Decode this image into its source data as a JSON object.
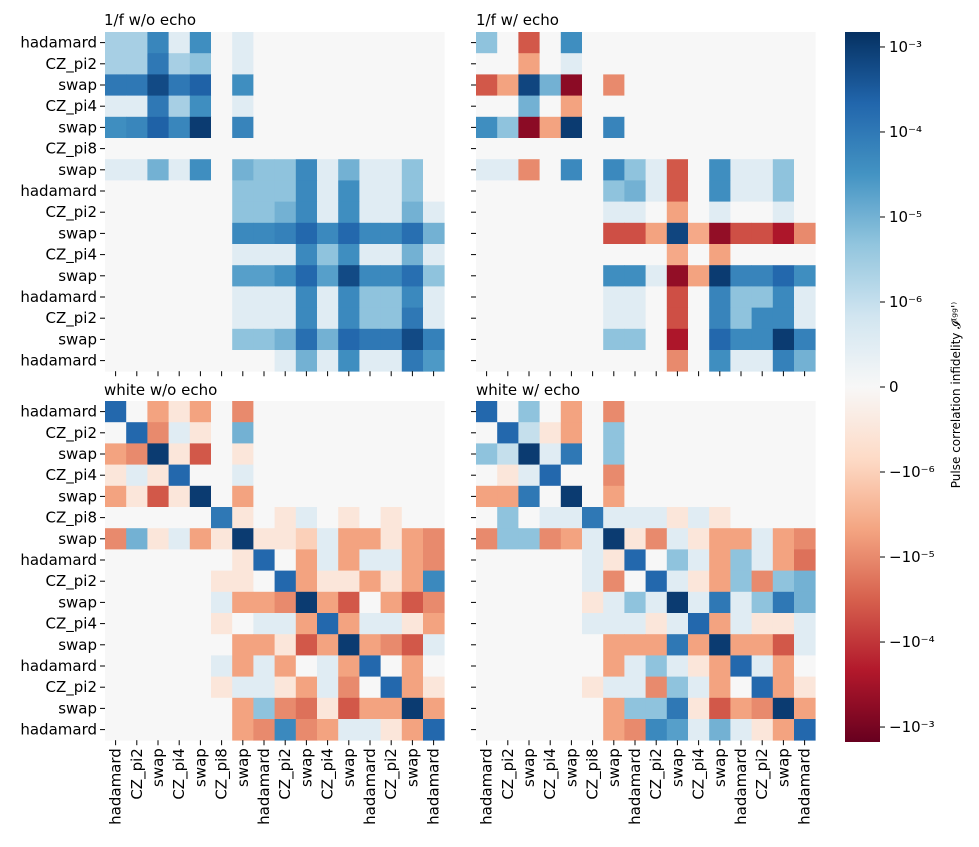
{
  "labels": [
    "hadamard",
    "CZ_pi2",
    "swap",
    "CZ_pi4",
    "swap",
    "CZ_pi8",
    "swap",
    "hadamard",
    "CZ_pi2",
    "swap",
    "CZ_pi4",
    "swap",
    "hadamard",
    "CZ_pi2",
    "swap",
    "hadamard"
  ],
  "colorbar": {
    "label": "Pulse correlation infidelity 𝓘⁽ᵍᵍ'⁾",
    "ticks": [
      {
        "value": 0.001,
        "label": "10⁻³"
      },
      {
        "value": 0.0001,
        "label": "10⁻⁴"
      },
      {
        "value": 1e-05,
        "label": "10⁻⁵"
      },
      {
        "value": 1e-06,
        "label": "10⁻⁶"
      },
      {
        "value": 0,
        "label": "0"
      },
      {
        "value": -1e-06,
        "label": "−10⁻⁶"
      },
      {
        "value": -1e-05,
        "label": "−10⁻⁵"
      },
      {
        "value": -0.0001,
        "label": "−10⁻⁴"
      },
      {
        "value": -0.001,
        "label": "−10⁻³"
      }
    ],
    "vmax": 0.0015,
    "linthresh": 1e-06,
    "colormap": "RdBu_r",
    "colors": {
      "pos_max": "#08306b",
      "mid": "#f7f7f7",
      "neg_max": "#67001f"
    }
  },
  "chart_data": [
    {
      "type": "heatmap",
      "title": "1/f w/o echo",
      "xlabels_shown": false,
      "ylabels_shown": true,
      "values": [
        [
          2.5e-06,
          2.5e-06,
          5.6e-05,
          5e-07,
          4e-05,
          0,
          5e-07,
          0,
          0,
          0,
          0,
          0,
          0,
          0,
          0,
          0
        ],
        [
          2.5e-06,
          2.5e-06,
          0.0001,
          2.5e-06,
          5e-06,
          0,
          5e-07,
          0,
          0,
          0,
          0,
          0,
          0,
          0,
          0,
          0
        ],
        [
          0.0001,
          0.0001,
          0.0006,
          0.0001,
          0.00025,
          0,
          4e-05,
          0,
          0,
          0,
          0,
          0,
          0,
          0,
          0,
          0
        ],
        [
          5e-07,
          5e-07,
          0.0001,
          2.5e-06,
          4e-05,
          0,
          5e-07,
          0,
          0,
          0,
          0,
          0,
          0,
          0,
          0,
          0
        ],
        [
          4e-05,
          5.6e-05,
          0.00025,
          5.6e-05,
          0.001,
          0,
          6e-05,
          0,
          0,
          0,
          0,
          0,
          0,
          0,
          0,
          0
        ],
        [
          0,
          0,
          0,
          0,
          0,
          0,
          0,
          0,
          0,
          0,
          0,
          0,
          0,
          0,
          0,
          0
        ],
        [
          5e-07,
          5e-07,
          1e-05,
          5e-07,
          4e-05,
          0,
          1e-05,
          5e-06,
          5e-06,
          5e-05,
          5e-07,
          1e-05,
          5e-07,
          5e-07,
          5e-06,
          0
        ],
        [
          0,
          0,
          0,
          0,
          0,
          0,
          5e-06,
          5e-06,
          5e-06,
          5e-05,
          5e-07,
          4e-05,
          5e-07,
          5e-07,
          5e-06,
          0
        ],
        [
          0,
          0,
          0,
          0,
          0,
          0,
          5e-06,
          5e-06,
          1e-05,
          5e-05,
          5e-07,
          4e-05,
          5e-07,
          5e-07,
          1e-05,
          5e-07
        ],
        [
          0,
          0,
          0,
          0,
          0,
          0,
          5e-05,
          5e-05,
          7e-05,
          0.0002,
          5e-05,
          0.0002,
          5e-05,
          5e-05,
          0.00015,
          1e-05
        ],
        [
          0,
          0,
          0,
          0,
          0,
          0,
          5e-07,
          5e-07,
          5e-07,
          5e-05,
          5e-06,
          4e-05,
          5e-07,
          5e-07,
          1e-05,
          5e-07
        ],
        [
          0,
          0,
          0,
          0,
          0,
          0,
          2e-05,
          2e-05,
          4e-05,
          0.0002,
          2e-05,
          0.0006,
          5e-05,
          5e-05,
          0.00015,
          5e-06
        ],
        [
          0,
          0,
          0,
          0,
          0,
          0,
          5e-07,
          5e-07,
          5e-07,
          5e-05,
          5e-07,
          5e-05,
          5e-06,
          5e-06,
          5e-05,
          5e-07
        ],
        [
          0,
          0,
          0,
          0,
          0,
          0,
          5e-07,
          5e-07,
          5e-07,
          5e-05,
          5e-07,
          5e-05,
          5e-06,
          5e-06,
          0.0001,
          5e-07
        ],
        [
          0,
          0,
          0,
          0,
          0,
          0,
          5e-06,
          5e-06,
          1e-05,
          0.00015,
          1e-05,
          0.0002,
          0.0001,
          0.0001,
          0.0006,
          7e-05
        ],
        [
          0,
          0,
          0,
          0,
          0,
          0,
          0,
          0,
          5e-07,
          1e-05,
          5e-07,
          4e-05,
          5e-07,
          5e-07,
          0.0001,
          2.5e-05
        ]
      ]
    },
    {
      "type": "heatmap",
      "title": "1/f w/ echo",
      "xlabels_shown": false,
      "ylabels_shown": false,
      "values": [
        [
          5e-06,
          0,
          -4e-05,
          0,
          4e-05,
          0,
          0,
          0,
          0,
          0,
          0,
          0,
          0,
          0,
          0,
          0
        ],
        [
          0,
          0,
          -5e-06,
          0,
          5e-07,
          0,
          0,
          0,
          0,
          0,
          0,
          0,
          0,
          0,
          0,
          0
        ],
        [
          -4e-05,
          -5e-06,
          0.0007,
          1e-05,
          -0.0006,
          0,
          -1e-05,
          0,
          0,
          0,
          0,
          0,
          0,
          0,
          0,
          0
        ],
        [
          0,
          0,
          1e-05,
          0,
          -5e-06,
          0,
          0,
          0,
          0,
          0,
          0,
          0,
          0,
          0,
          0,
          0
        ],
        [
          4e-05,
          5e-06,
          -0.0006,
          -5e-06,
          0.001,
          0,
          6e-05,
          0,
          0,
          0,
          0,
          0,
          0,
          0,
          0,
          0
        ],
        [
          0,
          0,
          0,
          0,
          0,
          0,
          0,
          0,
          0,
          0,
          0,
          0,
          0,
          0,
          0,
          0
        ],
        [
          5e-07,
          5e-07,
          -1e-05,
          0,
          5e-05,
          0,
          5e-05,
          5e-06,
          5e-07,
          -4e-05,
          0,
          4e-05,
          5e-07,
          5e-07,
          5e-06,
          0
        ],
        [
          0,
          0,
          0,
          0,
          0,
          0,
          5e-06,
          1e-05,
          5e-07,
          -4e-05,
          0,
          4e-05,
          5e-07,
          5e-07,
          5e-06,
          0
        ],
        [
          0,
          0,
          0,
          0,
          0,
          0,
          5e-07,
          5e-07,
          0,
          -5e-06,
          0,
          5e-07,
          0,
          0,
          5e-07,
          0
        ],
        [
          0,
          0,
          0,
          0,
          0,
          0,
          -5e-05,
          -5e-05,
          -5e-06,
          0.0007,
          -4e-06,
          -0.0005,
          -5e-05,
          -5e-05,
          -0.00025,
          -1e-05
        ],
        [
          0,
          0,
          0,
          0,
          0,
          0,
          0,
          0,
          0,
          -4e-06,
          0,
          -5e-06,
          0,
          0,
          0,
          0
        ],
        [
          0,
          0,
          0,
          0,
          0,
          0,
          4e-05,
          4e-05,
          5e-07,
          -0.0005,
          -5e-06,
          0.001,
          6e-05,
          6e-05,
          0.0002,
          4e-05
        ],
        [
          0,
          0,
          0,
          0,
          0,
          0,
          5e-07,
          5e-07,
          0,
          -5e-05,
          0,
          6e-05,
          5e-06,
          5e-06,
          5e-05,
          5e-07
        ],
        [
          0,
          0,
          0,
          0,
          0,
          0,
          5e-07,
          5e-07,
          0,
          -5e-05,
          0,
          6e-05,
          5e-06,
          5e-05,
          5e-05,
          5e-07
        ],
        [
          0,
          0,
          0,
          0,
          0,
          0,
          5e-06,
          5e-06,
          0,
          -0.00025,
          0,
          0.0002,
          5e-05,
          5e-05,
          0.001,
          7e-05
        ],
        [
          0,
          0,
          0,
          0,
          0,
          0,
          0,
          0,
          0,
          -1e-05,
          0,
          4e-05,
          5e-07,
          5e-07,
          7e-05,
          1e-05
        ]
      ]
    },
    {
      "type": "heatmap",
      "title": "white w/o echo",
      "xlabels_shown": true,
      "ylabels_shown": true,
      "values": [
        [
          0.0002,
          0,
          -5e-06,
          -5e-07,
          -5e-06,
          0,
          -1e-05,
          0,
          0,
          0,
          0,
          0,
          0,
          0,
          0,
          0
        ],
        [
          0,
          0.0002,
          -1e-05,
          5e-07,
          -5e-07,
          0,
          1e-05,
          0,
          0,
          0,
          0,
          0,
          0,
          0,
          0,
          0
        ],
        [
          -5e-06,
          -1e-05,
          0.001,
          -5e-07,
          -4e-05,
          0,
          -5e-07,
          0,
          0,
          0,
          0,
          0,
          0,
          0,
          0,
          0
        ],
        [
          -5e-07,
          5e-07,
          -5e-07,
          0.0002,
          0,
          0,
          5e-07,
          0,
          0,
          0,
          0,
          0,
          0,
          0,
          0,
          0
        ],
        [
          -5e-06,
          -5e-07,
          -4e-05,
          -5e-07,
          0.001,
          0,
          -5e-06,
          0,
          0,
          0,
          0,
          0,
          0,
          0,
          0,
          0
        ],
        [
          0,
          0,
          0,
          0,
          0,
          0.0001,
          -5e-07,
          0,
          -5e-07,
          5e-07,
          0,
          -5e-07,
          0,
          -5e-07,
          0,
          0
        ],
        [
          -1e-05,
          1e-05,
          -5e-07,
          5e-07,
          -5e-06,
          -5e-07,
          0.001,
          -5e-07,
          -5e-07,
          -1e-06,
          5e-07,
          -5e-06,
          -5e-06,
          -5e-07,
          -5e-06,
          -1e-05
        ],
        [
          0,
          0,
          0,
          0,
          0,
          0,
          -5e-07,
          0.0002,
          0,
          -5e-06,
          5e-07,
          -5e-06,
          5e-07,
          5e-07,
          -5e-06,
          -1e-05
        ],
        [
          0,
          0,
          0,
          0,
          0,
          -5e-07,
          -5e-07,
          0,
          0.0002,
          -5e-06,
          -5e-07,
          -5e-07,
          -5e-06,
          -5e-07,
          -5e-06,
          5e-05
        ],
        [
          0,
          0,
          0,
          0,
          0,
          5e-07,
          -5e-06,
          -5e-06,
          -1e-05,
          0.001,
          -5e-06,
          -4e-05,
          0,
          -5e-06,
          -4e-05,
          -1e-05
        ],
        [
          0,
          0,
          0,
          0,
          0,
          -5e-07,
          0,
          5e-07,
          5e-07,
          -5e-06,
          0.0002,
          -5e-06,
          5e-07,
          5e-07,
          -5e-07,
          -5e-06
        ],
        [
          0,
          0,
          0,
          0,
          0,
          0,
          -5e-06,
          -5e-06,
          -5e-07,
          -4e-05,
          -5e-06,
          0.001,
          -5e-06,
          -1e-05,
          -4e-05,
          5e-07
        ],
        [
          0,
          0,
          0,
          0,
          0,
          5e-07,
          -5e-06,
          5e-07,
          -5e-06,
          0,
          5e-07,
          -5e-06,
          0.0002,
          0,
          -5e-06,
          0
        ],
        [
          0,
          0,
          0,
          0,
          0,
          -5e-07,
          5e-07,
          5e-07,
          -5e-07,
          -5e-06,
          5e-07,
          -1e-05,
          0,
          0.0002,
          -5e-06,
          -5e-07
        ],
        [
          0,
          0,
          0,
          0,
          0,
          0,
          -5e-06,
          5e-06,
          -1e-05,
          -2e-05,
          -5e-07,
          -4e-05,
          -5e-06,
          -5e-06,
          0.001,
          -5e-06
        ],
        [
          0,
          0,
          0,
          0,
          0,
          0,
          -5e-06,
          -1e-05,
          5e-05,
          -1e-05,
          -5e-06,
          5e-07,
          5e-07,
          -5e-07,
          -5e-06,
          0.0002
        ]
      ]
    },
    {
      "type": "heatmap",
      "title": "white w/ echo",
      "xlabels_shown": true,
      "ylabels_shown": false,
      "values": [
        [
          0.0002,
          0,
          5e-06,
          0,
          -5e-06,
          0,
          -1e-05,
          0,
          0,
          0,
          0,
          0,
          0,
          0,
          0,
          0
        ],
        [
          0,
          0.0002,
          1e-06,
          -5e-07,
          -5e-06,
          0,
          5e-06,
          0,
          0,
          0,
          0,
          0,
          0,
          0,
          0,
          0
        ],
        [
          5e-06,
          1e-06,
          0.001,
          5e-07,
          0.0001,
          0,
          5e-06,
          0,
          0,
          0,
          0,
          0,
          0,
          0,
          0,
          0
        ],
        [
          0,
          -5e-07,
          5e-07,
          0.0002,
          0,
          0,
          -1e-05,
          0,
          0,
          0,
          0,
          0,
          0,
          0,
          0,
          0
        ],
        [
          -5e-06,
          -5e-06,
          0.0001,
          0,
          0.001,
          0,
          -5e-06,
          0,
          0,
          0,
          0,
          0,
          0,
          0,
          0,
          0
        ],
        [
          0,
          5e-06,
          0,
          5e-07,
          5e-07,
          0.0001,
          5e-07,
          5e-07,
          5e-07,
          -5e-07,
          5e-07,
          -5e-07,
          0,
          0,
          0,
          0
        ],
        [
          -1e-05,
          5e-06,
          5e-06,
          -1e-05,
          -5e-06,
          5e-07,
          0.001,
          -5e-07,
          -1e-05,
          5e-07,
          -5e-07,
          -5e-06,
          -5e-06,
          5e-07,
          -5e-06,
          -1e-05
        ],
        [
          0,
          0,
          0,
          0,
          0,
          5e-07,
          -5e-07,
          0.0002,
          0,
          5e-06,
          5e-07,
          -5e-06,
          5e-06,
          5e-07,
          -5e-06,
          -2e-05
        ],
        [
          0,
          0,
          0,
          0,
          0,
          5e-07,
          -1e-05,
          0,
          0.0002,
          5e-07,
          -5e-07,
          -5e-06,
          5e-06,
          -1e-05,
          5e-06,
          1e-05
        ],
        [
          0,
          0,
          0,
          0,
          0,
          -5e-07,
          5e-07,
          5e-06,
          5e-07,
          0.001,
          5e-07,
          0.0001,
          5e-07,
          5e-06,
          0.0001,
          1e-05
        ],
        [
          0,
          0,
          0,
          0,
          0,
          5e-07,
          5e-07,
          5e-07,
          -5e-07,
          5e-07,
          0.0002,
          -5e-06,
          5e-07,
          -5e-07,
          -5e-07,
          5e-07
        ],
        [
          0,
          0,
          0,
          0,
          0,
          0,
          -5e-06,
          -5e-06,
          -5e-06,
          0.0001,
          -5e-06,
          0.001,
          -5e-06,
          -5e-06,
          -4e-05,
          5e-07
        ],
        [
          0,
          0,
          0,
          0,
          0,
          0,
          -5e-06,
          5e-07,
          5e-06,
          5e-07,
          -5e-07,
          -5e-06,
          0.0002,
          5e-07,
          -5e-06,
          0
        ],
        [
          0,
          0,
          0,
          0,
          0,
          -5e-07,
          5e-07,
          5e-07,
          -1e-05,
          5e-06,
          5e-07,
          -5e-06,
          0,
          0.0002,
          -5e-06,
          -5e-07
        ],
        [
          0,
          0,
          0,
          0,
          0,
          0,
          -5e-06,
          5e-06,
          5e-06,
          0.0001,
          -5e-07,
          -4e-05,
          -5e-06,
          -1e-05,
          0.001,
          -5e-06
        ],
        [
          0,
          0,
          0,
          0,
          0,
          0,
          -5e-06,
          -1e-05,
          5e-05,
          2e-05,
          5e-07,
          1e-05,
          5e-07,
          -5e-07,
          -5e-06,
          0.0002
        ]
      ]
    }
  ]
}
